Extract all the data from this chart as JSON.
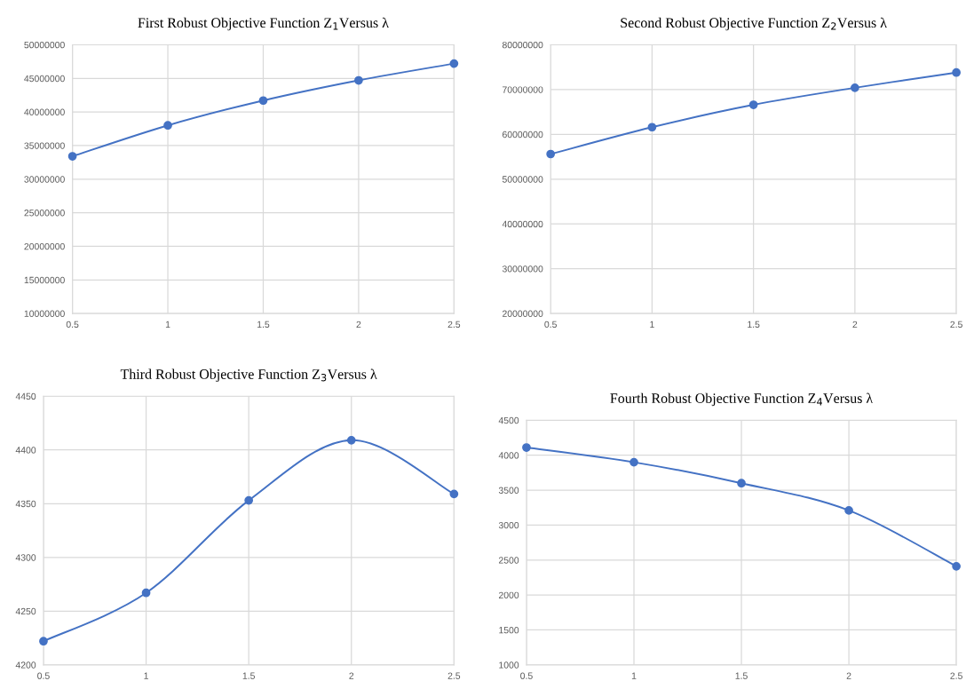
{
  "chart_data": [
    {
      "type": "line",
      "title": "First Robust Objective Function Z$_{1}$Versus λ",
      "x": [
        0.5,
        1,
        1.5,
        2,
        2.5
      ],
      "series": [
        {
          "color": "#4472c4",
          "values": [
            33400000,
            38000000,
            41700000,
            44700000,
            47200000
          ]
        }
      ],
      "xlim": [
        0.5,
        2.5
      ],
      "xticks": [
        0.5,
        1,
        1.5,
        2,
        2.5
      ],
      "ylim": [
        10000000,
        50000000
      ],
      "yticks": [
        10000000,
        15000000,
        20000000,
        25000000,
        30000000,
        35000000,
        40000000,
        45000000,
        50000000
      ],
      "grid": true,
      "marker": "circle",
      "line_style": "solid",
      "legend": false
    },
    {
      "type": "line",
      "title": "Second Robust Objective Function Z$_{2}$Versus λ",
      "x": [
        0.5,
        1,
        1.5,
        2,
        2.5
      ],
      "series": [
        {
          "color": "#4472c4",
          "values": [
            55600000,
            61600000,
            66600000,
            70400000,
            73800000
          ]
        }
      ],
      "xlim": [
        0.5,
        2.5
      ],
      "xticks": [
        0.5,
        1,
        1.5,
        2,
        2.5
      ],
      "ylim": [
        20000000,
        80000000
      ],
      "yticks": [
        20000000,
        30000000,
        40000000,
        50000000,
        60000000,
        70000000,
        80000000
      ],
      "grid": true,
      "marker": "circle",
      "line_style": "solid",
      "legend": false
    },
    {
      "type": "line",
      "title": "Third Robust Objective Function Z$_{3}$Versus λ",
      "x": [
        0.5,
        1,
        1.5,
        2,
        2.5
      ],
      "series": [
        {
          "color": "#4472c4",
          "values": [
            4222,
            4267,
            4353,
            4409,
            4359
          ]
        }
      ],
      "xlim": [
        0.5,
        2.5
      ],
      "xticks": [
        0.5,
        1,
        1.5,
        2,
        2.5
      ],
      "ylim": [
        4200,
        4450
      ],
      "yticks": [
        4200,
        4250,
        4300,
        4350,
        4400,
        4450
      ],
      "grid": true,
      "marker": "circle",
      "line_style": "solid",
      "legend": false
    },
    {
      "type": "line",
      "title": "Fourth Robust Objective Function Z$_{4}$Versus λ",
      "x": [
        0.5,
        1,
        1.5,
        2,
        2.5
      ],
      "series": [
        {
          "color": "#4472c4",
          "values": [
            4110,
            3900,
            3600,
            3210,
            2410
          ]
        }
      ],
      "xlim": [
        0.5,
        2.5
      ],
      "xticks": [
        0.5,
        1,
        1.5,
        2,
        2.5
      ],
      "ylim": [
        1000,
        4500
      ],
      "yticks": [
        1000,
        1500,
        2000,
        2500,
        3000,
        3500,
        4000,
        4500
      ],
      "grid": true,
      "marker": "circle",
      "line_style": "solid",
      "legend": false
    }
  ]
}
